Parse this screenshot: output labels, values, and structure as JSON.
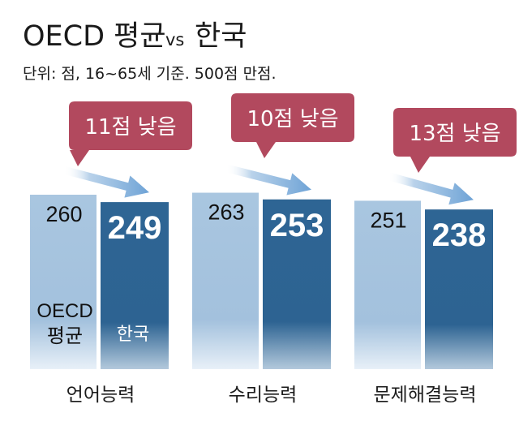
{
  "chart_data": {
    "type": "bar",
    "title": "OECD 평균",
    "title_vs": "vs",
    "title_country": "한국",
    "subtitle": "단위: 점, 16~65세 기준. 500점 만점.",
    "categories": [
      "언어능력",
      "수리능력",
      "문제해결능력"
    ],
    "series": [
      {
        "name": "OECD 평균",
        "legend_line1": "OECD",
        "legend_line2": "평균",
        "values": [
          260,
          263,
          251
        ],
        "color": "#a3c1dd"
      },
      {
        "name": "한국",
        "values": [
          249,
          253,
          238
        ],
        "color": "#2e6594"
      }
    ],
    "callouts": [
      "11점 낮음",
      "10점 낮음",
      "13점 낮음"
    ],
    "callout_color": "#b2495e",
    "arrow_color": "#7faedb",
    "grid": false
  }
}
